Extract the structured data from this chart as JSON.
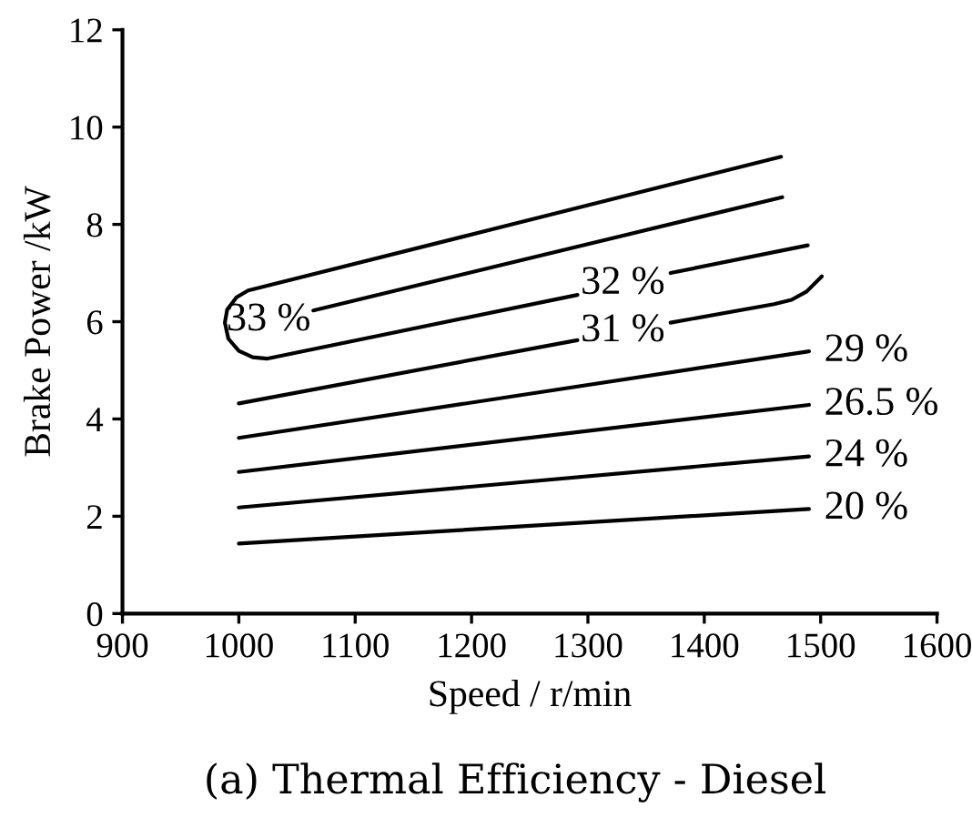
{
  "chart_data": {
    "type": "line",
    "title": "(a) Thermal Efficiency - Diesel",
    "xlabel": "Speed / r/min",
    "ylabel": "Brake Power /kW",
    "xlim": [
      900,
      1600
    ],
    "xticks": [
      900,
      1000,
      1100,
      1200,
      1300,
      1400,
      1500,
      1600
    ],
    "ylim": [
      0,
      12
    ],
    "yticks": [
      0,
      2,
      4,
      6,
      8,
      10,
      12
    ],
    "grid": false,
    "marker": "none",
    "line_style": "solid",
    "series": [
      {
        "name": "33 %",
        "color": "#000000",
        "x": [
          1064,
          1467
        ],
        "values": [
          6.23,
          8.56
        ]
      },
      {
        "name": "32 %",
        "color": "#000000",
        "x": [
          1466,
          1008,
          998,
          990,
          988,
          991,
          1000,
          1012,
          1024,
          1291,
          1330,
          1371,
          1489
        ],
        "values": [
          9.39,
          6.64,
          6.5,
          6.25,
          5.98,
          5.65,
          5.4,
          5.27,
          5.24,
          6.55,
          null,
          7.0,
          7.57
        ]
      },
      {
        "name": "31 %",
        "color": "#000000",
        "x": [
          1000,
          1291,
          1330,
          1371,
          1460,
          1475,
          1488,
          1501
        ],
        "values": [
          4.32,
          5.62,
          null,
          5.98,
          6.36,
          6.45,
          6.62,
          6.93
        ]
      },
      {
        "name": "29 %",
        "color": "#000000",
        "x": [
          1000,
          1490
        ],
        "values": [
          3.61,
          5.39
        ]
      },
      {
        "name": "26.5 %",
        "color": "#000000",
        "x": [
          1000,
          1490
        ],
        "values": [
          2.91,
          4.29
        ]
      },
      {
        "name": "24 %",
        "color": "#000000",
        "x": [
          1000,
          1490
        ],
        "values": [
          2.18,
          3.23
        ]
      },
      {
        "name": "20 %",
        "color": "#000000",
        "x": [
          1000,
          1490
        ],
        "values": [
          1.44,
          2.15
        ]
      }
    ]
  }
}
